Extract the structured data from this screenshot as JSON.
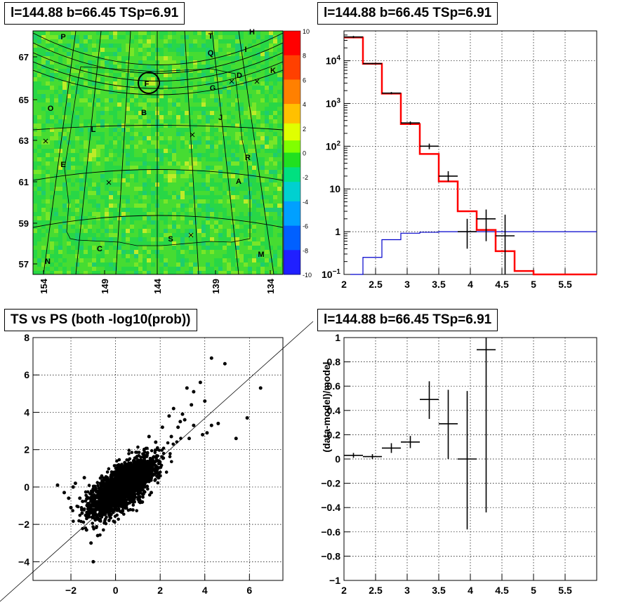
{
  "panels": {
    "skymap": {
      "title": "l=144.88 b=66.45 TSp=6.91"
    },
    "spectrum": {
      "title": "l=144.88 b=66.45 TSp=6.91"
    },
    "scatter": {
      "title": "TS vs PS (both -log10(prob))"
    },
    "residual": {
      "title": "l=144.88 b=66.45 TSp=6.91"
    }
  },
  "colors": {
    "data": "#000000",
    "model": "#ff0000",
    "source": "#0000cc"
  },
  "chart_data": [
    {
      "type": "heatmap",
      "title": "l=144.88 b=66.45 TSp=6.91",
      "xlabel": "",
      "ylabel": "",
      "x_ticks": [
        "154",
        "149",
        "144",
        "139",
        "134"
      ],
      "y_ticks": [
        "57",
        "59",
        "61",
        "63",
        "65",
        "67"
      ],
      "colorbar": {
        "min": -10,
        "max": 10,
        "ticks": [
          "10",
          "8",
          "6",
          "4",
          "2",
          "0",
          "-2",
          "-4",
          "-6",
          "-8",
          "-10"
        ]
      },
      "labels": [
        "P",
        "T",
        "H",
        "Q",
        "I",
        "D",
        "K",
        "F",
        "G",
        "O",
        "B",
        "J",
        "L",
        "E",
        "R",
        "A",
        "S",
        "C",
        "M",
        "N"
      ],
      "highlight": "F",
      "markers": "x"
    },
    {
      "type": "line",
      "title": "l=144.88 b=66.45 TSp=6.91",
      "xlabel": "",
      "ylabel": "",
      "xlim": [
        2,
        6
      ],
      "ylim": [
        0.1,
        50000
      ],
      "yscale": "log",
      "x_ticks": [
        "2",
        "2.5",
        "3",
        "3.5",
        "4",
        "4.5",
        "5",
        "5.5"
      ],
      "y_ticks": [
        "10^-1",
        "1",
        "10",
        "10^2",
        "10^3",
        "10^4"
      ],
      "grid": true,
      "series": [
        {
          "style": "step",
          "edges": [
            2,
            2.3,
            2.6,
            2.9,
            3.2,
            3.5,
            3.8,
            4.1,
            4.4,
            4.7,
            5.0,
            5.3,
            6.0
          ],
          "values": [
            35000,
            8500,
            1700,
            330,
            66,
            15,
            3,
            1.1,
            0.35,
            0.12,
            0.1,
            0.1
          ]
        },
        {
          "style": "step",
          "edges": [
            2.1,
            2.3,
            2.6,
            2.9,
            3.2,
            3.5,
            3.8,
            4.1,
            4.4,
            5.0,
            6.0
          ],
          "values": [
            0.03,
            0.25,
            0.65,
            0.92,
            0.97,
            1.0,
            1.0,
            1.0,
            1.0,
            1.0
          ]
        },
        {
          "style": "errorbar",
          "x": [
            2.15,
            2.45,
            2.75,
            3.05,
            3.35,
            3.65,
            3.95,
            4.25,
            4.55
          ],
          "xerr": 0.15,
          "y": [
            36000,
            8600,
            1750,
            350,
            100,
            20,
            1,
            2,
            0.8
          ],
          "ylo": [
            34000,
            8300,
            1650,
            320,
            85,
            15,
            0.4,
            0.6,
            0.1
          ],
          "yhi": [
            38000,
            8900,
            1850,
            380,
            115,
            26,
            2,
            3.3,
            2.5
          ]
        }
      ]
    },
    {
      "type": "scatter",
      "title": "TS vs PS (both -log10(prob))",
      "xlabel": "",
      "ylabel": "",
      "xlim": [
        -3.7,
        7.5
      ],
      "ylim": [
        -5,
        8
      ],
      "x_ticks": [
        "−2",
        "0",
        "2",
        "4",
        "6"
      ],
      "y_ticks": [
        "−4",
        "−2",
        "0",
        "2",
        "4",
        "6",
        "8"
      ],
      "grid": true,
      "diagonal": {
        "from": [
          -5,
          -5
        ],
        "to": [
          9,
          9
        ]
      },
      "cloud": {
        "count": 2600,
        "center": [
          0.3,
          0.0
        ],
        "spread": [
          0.7,
          0.75
        ],
        "correlation": 0.7
      },
      "points": [
        [
          6.5,
          5.3
        ],
        [
          5.4,
          2.6
        ],
        [
          4.9,
          6.6
        ],
        [
          4.3,
          6.9
        ],
        [
          3.8,
          5.6
        ],
        [
          3.5,
          5.1
        ],
        [
          3.2,
          5.3
        ],
        [
          3.4,
          4.4
        ],
        [
          4.1,
          2.9
        ],
        [
          4.3,
          3.3
        ],
        [
          3.9,
          2.8
        ],
        [
          3.1,
          3.6
        ],
        [
          2.8,
          3.2
        ],
        [
          3.5,
          3.3
        ],
        [
          3.0,
          3.9
        ],
        [
          4.6,
          3.4
        ],
        [
          2.6,
          4.2
        ],
        [
          2.4,
          3.8
        ],
        [
          5.9,
          3.7
        ],
        [
          4.0,
          4.6
        ],
        [
          2.9,
          3.5
        ],
        [
          2.1,
          3.2
        ],
        [
          2.5,
          2.7
        ],
        [
          3.3,
          2.6
        ],
        [
          -2.6,
          0.1
        ],
        [
          -2.3,
          -0.3
        ],
        [
          -1.9,
          0.0
        ],
        [
          -2.0,
          -1.1
        ],
        [
          -1.3,
          -2.3
        ],
        [
          -1.1,
          -3.0
        ],
        [
          -1.0,
          -4.0
        ],
        [
          -1.6,
          -0.6
        ],
        [
          -1.8,
          0.2
        ],
        [
          -2.1,
          -0.6
        ],
        [
          -1.2,
          -1.6
        ],
        [
          -0.8,
          -2.6
        ],
        [
          -1.5,
          -1.4
        ],
        [
          1.5,
          2.7
        ],
        [
          1.8,
          2.4
        ],
        [
          -1.4,
          0.5
        ],
        [
          1.2,
          -0.8
        ],
        [
          1.6,
          -0.3
        ],
        [
          2.0,
          0.6
        ]
      ]
    },
    {
      "type": "scatter",
      "title": "l=144.88 b=66.45 TSp=6.91",
      "xlabel": "",
      "ylabel": "(data-model)/model",
      "xlim": [
        2,
        6
      ],
      "ylim": [
        -1,
        1
      ],
      "x_ticks": [
        "2",
        "2.5",
        "3",
        "3.5",
        "4",
        "4.5",
        "5",
        "5.5"
      ],
      "y_ticks": [
        "−1",
        "−0.8",
        "−0.6",
        "−0.4",
        "−0.2",
        "0",
        "0.2",
        "0.4",
        "0.6",
        "0.8",
        "1"
      ],
      "grid": true,
      "x": [
        2.15,
        2.45,
        2.75,
        3.05,
        3.35,
        3.65,
        3.95,
        4.25
      ],
      "xerr": 0.15,
      "y": [
        0.03,
        0.02,
        0.09,
        0.14,
        0.49,
        0.29,
        0.0,
        0.9
      ],
      "ylo": [
        0.01,
        0.0,
        0.05,
        0.09,
        0.33,
        0.0,
        -0.58,
        -0.44
      ],
      "yhi": [
        0.05,
        0.04,
        0.13,
        0.19,
        0.64,
        0.57,
        0.56,
        1.0
      ]
    }
  ]
}
